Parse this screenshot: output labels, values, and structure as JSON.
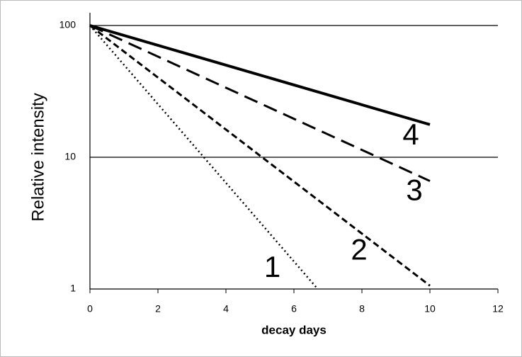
{
  "chart_data": {
    "type": "line",
    "xlabel": "decay days",
    "ylabel": "Relative intensity",
    "xlim": [
      0,
      12
    ],
    "xticks": [
      0,
      2,
      4,
      6,
      8,
      10,
      12
    ],
    "ylim": [
      1,
      100
    ],
    "yticks": [
      1,
      10,
      100
    ],
    "log_y": true,
    "grid": true,
    "series": [
      {
        "name": "1",
        "color": "#000000",
        "dash": "dotted",
        "x": [
          0,
          6.7
        ],
        "values": [
          100,
          1
        ]
      },
      {
        "name": "2",
        "color": "#000000",
        "dash": "short-dash",
        "x": [
          0,
          10
        ],
        "values": [
          100,
          1.06
        ]
      },
      {
        "name": "3",
        "color": "#000000",
        "dash": "long-dash",
        "x": [
          0,
          10
        ],
        "values": [
          100,
          6.6
        ]
      },
      {
        "name": "4",
        "color": "#000000",
        "dash": "solid",
        "x": [
          0,
          10
        ],
        "values": [
          100,
          17.7
        ]
      }
    ]
  }
}
